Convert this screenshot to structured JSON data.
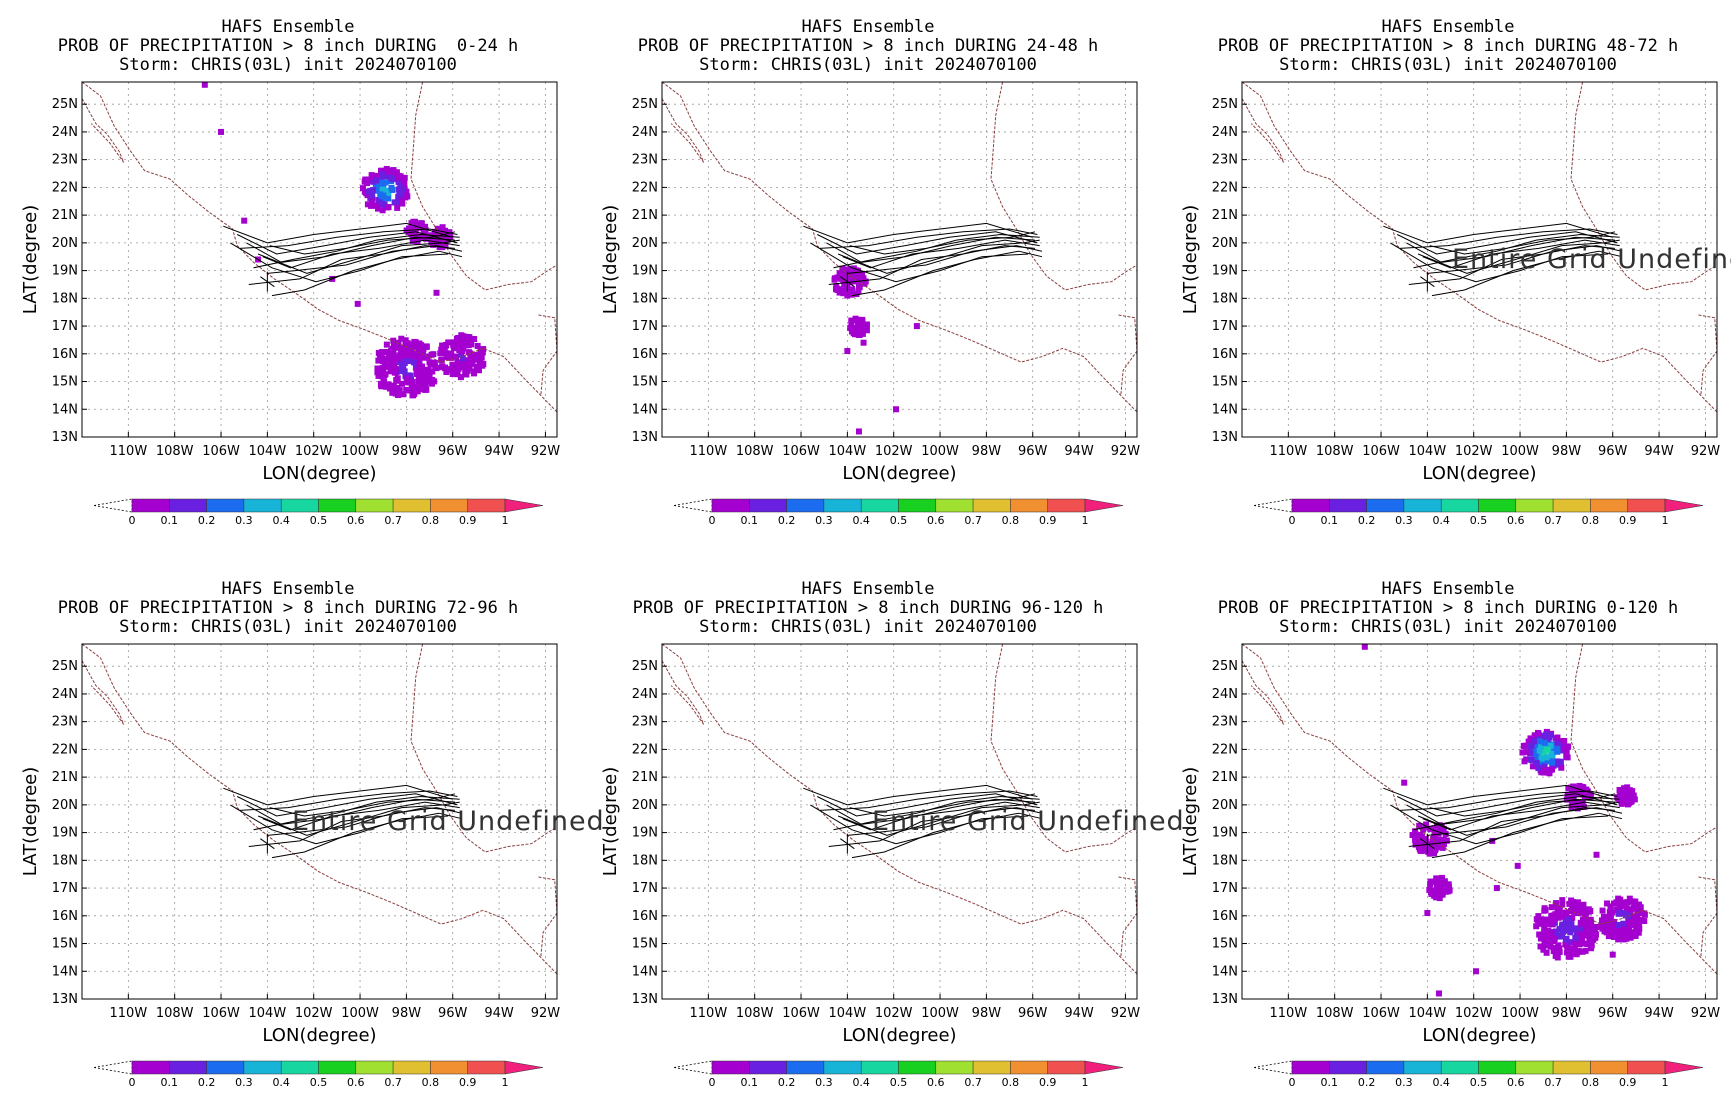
{
  "colors": {
    "colorbar": [
      "#a400d0",
      "#6a20e0",
      "#1c6cf0",
      "#18b4d8",
      "#18d6a0",
      "#18d020",
      "#a0e030",
      "#e0c030",
      "#f09030",
      "#f05050",
      "#f0207c"
    ],
    "coast": "#8a4040",
    "track": "#000000",
    "grid": "#999999"
  },
  "charts": [
    {
      "title": "HAFS Ensemble",
      "subtitle": "PROB OF PRECIPITATION > 8 inch DURING  0-24 h",
      "storm": "Storm: CHRIS(03L) init 2024070100",
      "xlabel": "LON(degree)",
      "ylabel": "LAT(degree)",
      "undefined_text": "",
      "blobs": [
        {
          "lon": -98.9,
          "lat": 21.9,
          "r": 0.8,
          "pmax": 0.35
        },
        {
          "lon": -98.0,
          "lat": 15.5,
          "r": 1.1,
          "pmax": 0.12
        },
        {
          "lon": -95.6,
          "lat": 15.9,
          "r": 0.8,
          "pmax": 0.1
        },
        {
          "lon": -96.5,
          "lat": 20.2,
          "r": 0.4,
          "pmax": 0.05
        },
        {
          "lon": -97.5,
          "lat": 20.4,
          "r": 0.4,
          "pmax": 0.05
        }
      ],
      "dots": [
        [
          -105.0,
          20.8
        ],
        [
          -104.4,
          19.4
        ],
        [
          -101.2,
          18.7
        ],
        [
          -100.1,
          17.8
        ],
        [
          -96.7,
          18.2
        ],
        [
          -106.7,
          25.7
        ],
        [
          -106.0,
          24.0
        ]
      ]
    },
    {
      "title": "HAFS Ensemble",
      "subtitle": "PROB OF PRECIPITATION > 8 inch DURING 24-48 h",
      "storm": "Storm: CHRIS(03L) init 2024070100",
      "xlabel": "LON(degree)",
      "ylabel": "LAT(degree)",
      "undefined_text": "",
      "blobs": [
        {
          "lon": -103.9,
          "lat": 18.6,
          "r": 0.55,
          "pmax": 0.08
        },
        {
          "lon": -103.5,
          "lat": 17.0,
          "r": 0.35,
          "pmax": 0.05
        }
      ],
      "dots": [
        [
          -104.0,
          16.1
        ],
        [
          -103.3,
          16.4
        ],
        [
          -101.9,
          14.0
        ],
        [
          -101.0,
          17.0
        ],
        [
          -103.5,
          13.2
        ]
      ]
    },
    {
      "title": "HAFS Ensemble",
      "subtitle": "PROB OF PRECIPITATION > 8 inch DURING 48-72 h",
      "storm": "Storm: CHRIS(03L) init 2024070100",
      "xlabel": "LON(degree)",
      "ylabel": "LAT(degree)",
      "undefined_text": "Entire Grid Undefined",
      "blobs": [],
      "dots": []
    },
    {
      "title": "HAFS Ensemble",
      "subtitle": "PROB OF PRECIPITATION > 8 inch DURING 72-96 h",
      "storm": "Storm: CHRIS(03L) init 2024070100",
      "xlabel": "LON(degree)",
      "ylabel": "LAT(degree)",
      "undefined_text": "Entire Grid Undefined",
      "blobs": [],
      "dots": []
    },
    {
      "title": "HAFS Ensemble",
      "subtitle": "PROB OF PRECIPITATION > 8 inch DURING 96-120 h",
      "storm": "Storm: CHRIS(03L) init 2024070100",
      "xlabel": "LON(degree)",
      "ylabel": "LAT(degree)",
      "undefined_text": "Entire Grid Undefined",
      "blobs": [],
      "dots": []
    },
    {
      "title": "HAFS Ensemble",
      "subtitle": "PROB OF PRECIPITATION > 8 inch DURING 0-120 h",
      "storm": "Storm: CHRIS(03L) init 2024070100",
      "xlabel": "LON(degree)",
      "ylabel": "LAT(degree)",
      "undefined_text": "",
      "blobs": [
        {
          "lon": -98.9,
          "lat": 21.9,
          "r": 0.8,
          "pmax": 0.45
        },
        {
          "lon": -98.0,
          "lat": 15.5,
          "r": 1.1,
          "pmax": 0.14
        },
        {
          "lon": -95.6,
          "lat": 15.9,
          "r": 0.8,
          "pmax": 0.12
        },
        {
          "lon": -97.5,
          "lat": 20.3,
          "r": 0.45,
          "pmax": 0.08
        },
        {
          "lon": -103.9,
          "lat": 18.8,
          "r": 0.6,
          "pmax": 0.1
        },
        {
          "lon": -103.5,
          "lat": 17.0,
          "r": 0.4,
          "pmax": 0.06
        },
        {
          "lon": -95.4,
          "lat": 20.3,
          "r": 0.35,
          "pmax": 0.05
        }
      ],
      "dots": [
        [
          -105.0,
          20.8
        ],
        [
          -101.2,
          18.7
        ],
        [
          -100.1,
          17.8
        ],
        [
          -96.7,
          18.2
        ],
        [
          -106.7,
          25.7
        ],
        [
          -101.0,
          17.0
        ],
        [
          -103.5,
          13.2
        ],
        [
          -101.9,
          14.0
        ],
        [
          -104.0,
          16.1
        ],
        [
          -96.0,
          14.6
        ]
      ]
    }
  ],
  "chart_data": [
    {
      "type": "heatmap",
      "title": "HAFS Ensemble",
      "subtitle": "PROB OF PRECIPITATION > 8 inch DURING  0-24 h",
      "xlabel": "LON(degree)",
      "ylabel": "LAT(degree)",
      "xlim": [
        -112,
        -91.5
      ],
      "ylim": [
        13,
        25.8
      ],
      "x_ticks": [
        "110W",
        "108W",
        "106W",
        "104W",
        "102W",
        "100W",
        "98W",
        "96W",
        "94W",
        "92W"
      ],
      "y_ticks": [
        "13N",
        "14N",
        "15N",
        "16N",
        "17N",
        "18N",
        "19N",
        "20N",
        "21N",
        "22N",
        "23N",
        "24N",
        "25N"
      ],
      "colorbar_levels": [
        "0",
        "0.1",
        "0.2",
        "0.3",
        "0.4",
        "0.5",
        "0.6",
        "0.7",
        "0.8",
        "0.9",
        "1"
      ],
      "grid": true
    },
    {
      "type": "heatmap",
      "title": "HAFS Ensemble",
      "subtitle": "PROB OF PRECIPITATION > 8 inch DURING 24-48 h",
      "xlabel": "LON(degree)",
      "ylabel": "LAT(degree)",
      "xlim": [
        -112,
        -91.5
      ],
      "ylim": [
        13,
        25.8
      ],
      "grid": true
    },
    {
      "type": "heatmap",
      "title": "HAFS Ensemble",
      "subtitle": "PROB OF PRECIPITATION > 8 inch DURING 48-72 h",
      "xlabel": "LON(degree)",
      "ylabel": "LAT(degree)",
      "xlim": [
        -112,
        -91.5
      ],
      "ylim": [
        13,
        25.8
      ],
      "annotation": "Entire Grid Undefined",
      "grid": true
    },
    {
      "type": "heatmap",
      "title": "HAFS Ensemble",
      "subtitle": "PROB OF PRECIPITATION > 8 inch DURING 72-96 h",
      "xlabel": "LON(degree)",
      "ylabel": "LAT(degree)",
      "xlim": [
        -112,
        -91.5
      ],
      "ylim": [
        13,
        25.8
      ],
      "annotation": "Entire Grid Undefined",
      "grid": true
    },
    {
      "type": "heatmap",
      "title": "HAFS Ensemble",
      "subtitle": "PROB OF PRECIPITATION > 8 inch DURING 96-120 h",
      "xlabel": "LON(degree)",
      "ylabel": "LAT(degree)",
      "xlim": [
        -112,
        -91.5
      ],
      "ylim": [
        13,
        25.8
      ],
      "annotation": "Entire Grid Undefined",
      "grid": true
    },
    {
      "type": "heatmap",
      "title": "HAFS Ensemble",
      "subtitle": "PROB OF PRECIPITATION > 8 inch DURING 0-120 h",
      "xlabel": "LON(degree)",
      "ylabel": "LAT(degree)",
      "xlim": [
        -112,
        -91.5
      ],
      "ylim": [
        13,
        25.8
      ],
      "grid": true
    }
  ],
  "x_ticks": [
    "110W",
    "108W",
    "106W",
    "104W",
    "102W",
    "100W",
    "98W",
    "96W",
    "94W",
    "92W"
  ],
  "x_tick_values": [
    -110,
    -108,
    -106,
    -104,
    -102,
    -100,
    -98,
    -96,
    -94,
    -92
  ],
  "y_ticks": [
    "13N",
    "14N",
    "15N",
    "16N",
    "17N",
    "18N",
    "19N",
    "20N",
    "21N",
    "22N",
    "23N",
    "24N",
    "25N"
  ],
  "y_tick_values": [
    13,
    14,
    15,
    16,
    17,
    18,
    19,
    20,
    21,
    22,
    23,
    24,
    25
  ],
  "colorbar_labels": [
    "0",
    "0.1",
    "0.2",
    "0.3",
    "0.4",
    "0.5",
    "0.6",
    "0.7",
    "0.8",
    "0.9",
    "1"
  ],
  "coastline": [
    [
      -112,
      25.8
    ],
    [
      -111.2,
      25.3
    ],
    [
      -110.6,
      24.2
    ],
    [
      -109.9,
      23.3
    ],
    [
      -109.3,
      22.6
    ],
    [
      -108.2,
      22.3
    ],
    [
      -107.4,
      21.7
    ],
    [
      -106.5,
      21.1
    ],
    [
      -105.5,
      20.5
    ],
    [
      -105.3,
      19.9
    ],
    [
      -104.6,
      19.3
    ],
    [
      -103.7,
      18.7
    ],
    [
      -102.8,
      18.2
    ],
    [
      -101.8,
      17.6
    ],
    [
      -100.9,
      17.2
    ],
    [
      -99.9,
      16.9
    ],
    [
      -98.7,
      16.5
    ],
    [
      -97.6,
      16.1
    ],
    [
      -96.5,
      15.7
    ],
    [
      -95.6,
      15.9
    ],
    [
      -94.7,
      16.2
    ],
    [
      -93.8,
      15.9
    ],
    [
      -92.9,
      15.1
    ],
    [
      -92.2,
      14.5
    ],
    [
      -91.5,
      13.9
    ]
  ],
  "baja": [
    [
      -112,
      25.2
    ],
    [
      -111.4,
      24.3
    ],
    [
      -110.9,
      23.9
    ],
    [
      -110.4,
      23.3
    ],
    [
      -110.2,
      22.9
    ],
    [
      -110.8,
      23.6
    ],
    [
      -111.6,
      24.3
    ]
  ],
  "gulf_coast": [
    [
      -97.3,
      25.8
    ],
    [
      -97.6,
      24.6
    ],
    [
      -97.7,
      23.4
    ],
    [
      -97.8,
      22.3
    ],
    [
      -97.3,
      21.3
    ],
    [
      -96.7,
      20.5
    ],
    [
      -96.1,
      19.6
    ],
    [
      -95.4,
      18.8
    ],
    [
      -94.6,
      18.3
    ],
    [
      -93.6,
      18.5
    ],
    [
      -92.6,
      18.6
    ],
    [
      -91.9,
      19.0
    ],
    [
      -91.5,
      19.2
    ]
  ],
  "border": [
    [
      -92.3,
      17.4
    ],
    [
      -91.6,
      17.3
    ],
    [
      -91.5,
      16.1
    ],
    [
      -92.1,
      15.4
    ],
    [
      -92.2,
      14.5
    ]
  ],
  "tracks": [
    [
      [
        -105.9,
        20.6
      ],
      [
        -104.0,
        20.0
      ],
      [
        -102.0,
        20.3
      ],
      [
        -100.0,
        20.5
      ],
      [
        -98.0,
        20.7
      ],
      [
        -96.0,
        20.2
      ]
    ],
    [
      [
        -105.3,
        20.3
      ],
      [
        -103.6,
        19.6
      ],
      [
        -101.5,
        19.9
      ],
      [
        -99.6,
        20.2
      ],
      [
        -97.6,
        20.4
      ],
      [
        -95.8,
        20.0
      ]
    ],
    [
      [
        -104.9,
        20.0
      ],
      [
        -103.4,
        19.3
      ],
      [
        -101.5,
        19.5
      ],
      [
        -99.5,
        19.9
      ],
      [
        -97.6,
        20.2
      ],
      [
        -95.9,
        20.1
      ]
    ],
    [
      [
        -104.2,
        19.5
      ],
      [
        -103.0,
        19.1
      ],
      [
        -101.2,
        19.6
      ],
      [
        -99.2,
        19.8
      ],
      [
        -97.2,
        20.1
      ],
      [
        -95.7,
        19.9
      ]
    ],
    [
      [
        -104.0,
        18.9
      ],
      [
        -102.8,
        19.0
      ],
      [
        -100.6,
        19.2
      ],
      [
        -98.6,
        19.7
      ],
      [
        -96.7,
        19.9
      ],
      [
        -95.6,
        19.7
      ]
    ],
    [
      [
        -104.8,
        18.5
      ],
      [
        -102.6,
        18.7
      ],
      [
        -100.8,
        19.4
      ],
      [
        -99.0,
        19.6
      ],
      [
        -97.2,
        19.9
      ],
      [
        -95.9,
        19.8
      ]
    ],
    [
      [
        -103.8,
        18.1
      ],
      [
        -102.4,
        18.3
      ],
      [
        -100.3,
        19.0
      ],
      [
        -98.5,
        19.4
      ],
      [
        -96.6,
        19.7
      ],
      [
        -95.6,
        19.5
      ]
    ],
    [
      [
        -105.2,
        19.8
      ],
      [
        -103.1,
        19.9
      ],
      [
        -101.0,
        20.2
      ],
      [
        -99.0,
        20.4
      ],
      [
        -97.0,
        20.5
      ],
      [
        -95.8,
        20.3
      ]
    ],
    [
      [
        -104.6,
        19.1
      ],
      [
        -102.9,
        19.4
      ],
      [
        -101.0,
        19.7
      ],
      [
        -99.3,
        20.1
      ],
      [
        -97.4,
        20.3
      ],
      [
        -95.7,
        20.2
      ]
    ],
    [
      [
        -103.9,
        19.9
      ],
      [
        -102.4,
        19.6
      ],
      [
        -100.6,
        19.8
      ],
      [
        -98.8,
        20.1
      ],
      [
        -96.9,
        20.2
      ],
      [
        -95.9,
        20.4
      ]
    ],
    [
      [
        -104.4,
        19.6
      ],
      [
        -102.3,
        18.9
      ],
      [
        -100.2,
        19.4
      ],
      [
        -98.2,
        19.9
      ],
      [
        -96.4,
        20.0
      ],
      [
        -95.7,
        20.1
      ]
    ],
    [
      [
        -105.6,
        20.0
      ],
      [
        -103.8,
        19.1
      ],
      [
        -101.9,
        18.6
      ],
      [
        -100.0,
        19.0
      ],
      [
        -98.2,
        19.5
      ],
      [
        -96.2,
        19.6
      ]
    ]
  ],
  "track_cross": [
    -104.0,
    18.6
  ],
  "grid_lons": [
    -112,
    -110,
    -108,
    -106,
    -104,
    -102,
    -100,
    -98,
    -96,
    -94,
    -92
  ],
  "grid_lats": [
    13,
    14,
    15,
    16,
    17,
    18,
    19,
    20,
    21,
    22,
    23,
    24,
    25
  ]
}
